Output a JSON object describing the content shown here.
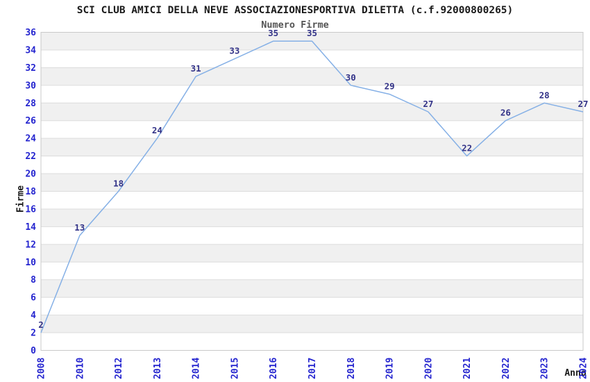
{
  "chart_data": {
    "type": "line",
    "title": "SCI CLUB AMICI DELLA NEVE ASSOCIAZIONESPORTIVA DILETTA (c.f.92000800265)",
    "subtitle": "Numero Firme",
    "xlabel": "Anno",
    "ylabel": "Firme",
    "categories": [
      "2008",
      "2010",
      "2012",
      "2013",
      "2014",
      "2015",
      "2016",
      "2017",
      "2018",
      "2019",
      "2020",
      "2021",
      "2022",
      "2023",
      "2024"
    ],
    "values": [
      2,
      13,
      18,
      24,
      31,
      33,
      35,
      35,
      30,
      29,
      27,
      22,
      26,
      28,
      27
    ],
    "ylim": [
      0,
      36
    ],
    "ytick_step": 2,
    "grid": true,
    "alternating_bands": true,
    "legend_position": "none",
    "data_labels_shown": true,
    "colors": {
      "line": "#85b0e6",
      "tick_label": "#2525cf",
      "data_label": "#333388",
      "band": "#f0f0f0",
      "grid": "#dcdcdc",
      "border": "#c9c9c9",
      "title": "#1a1a1a",
      "subtitle": "#555555",
      "axis_label": "#1a1a1a",
      "background": "#ffffff"
    }
  }
}
